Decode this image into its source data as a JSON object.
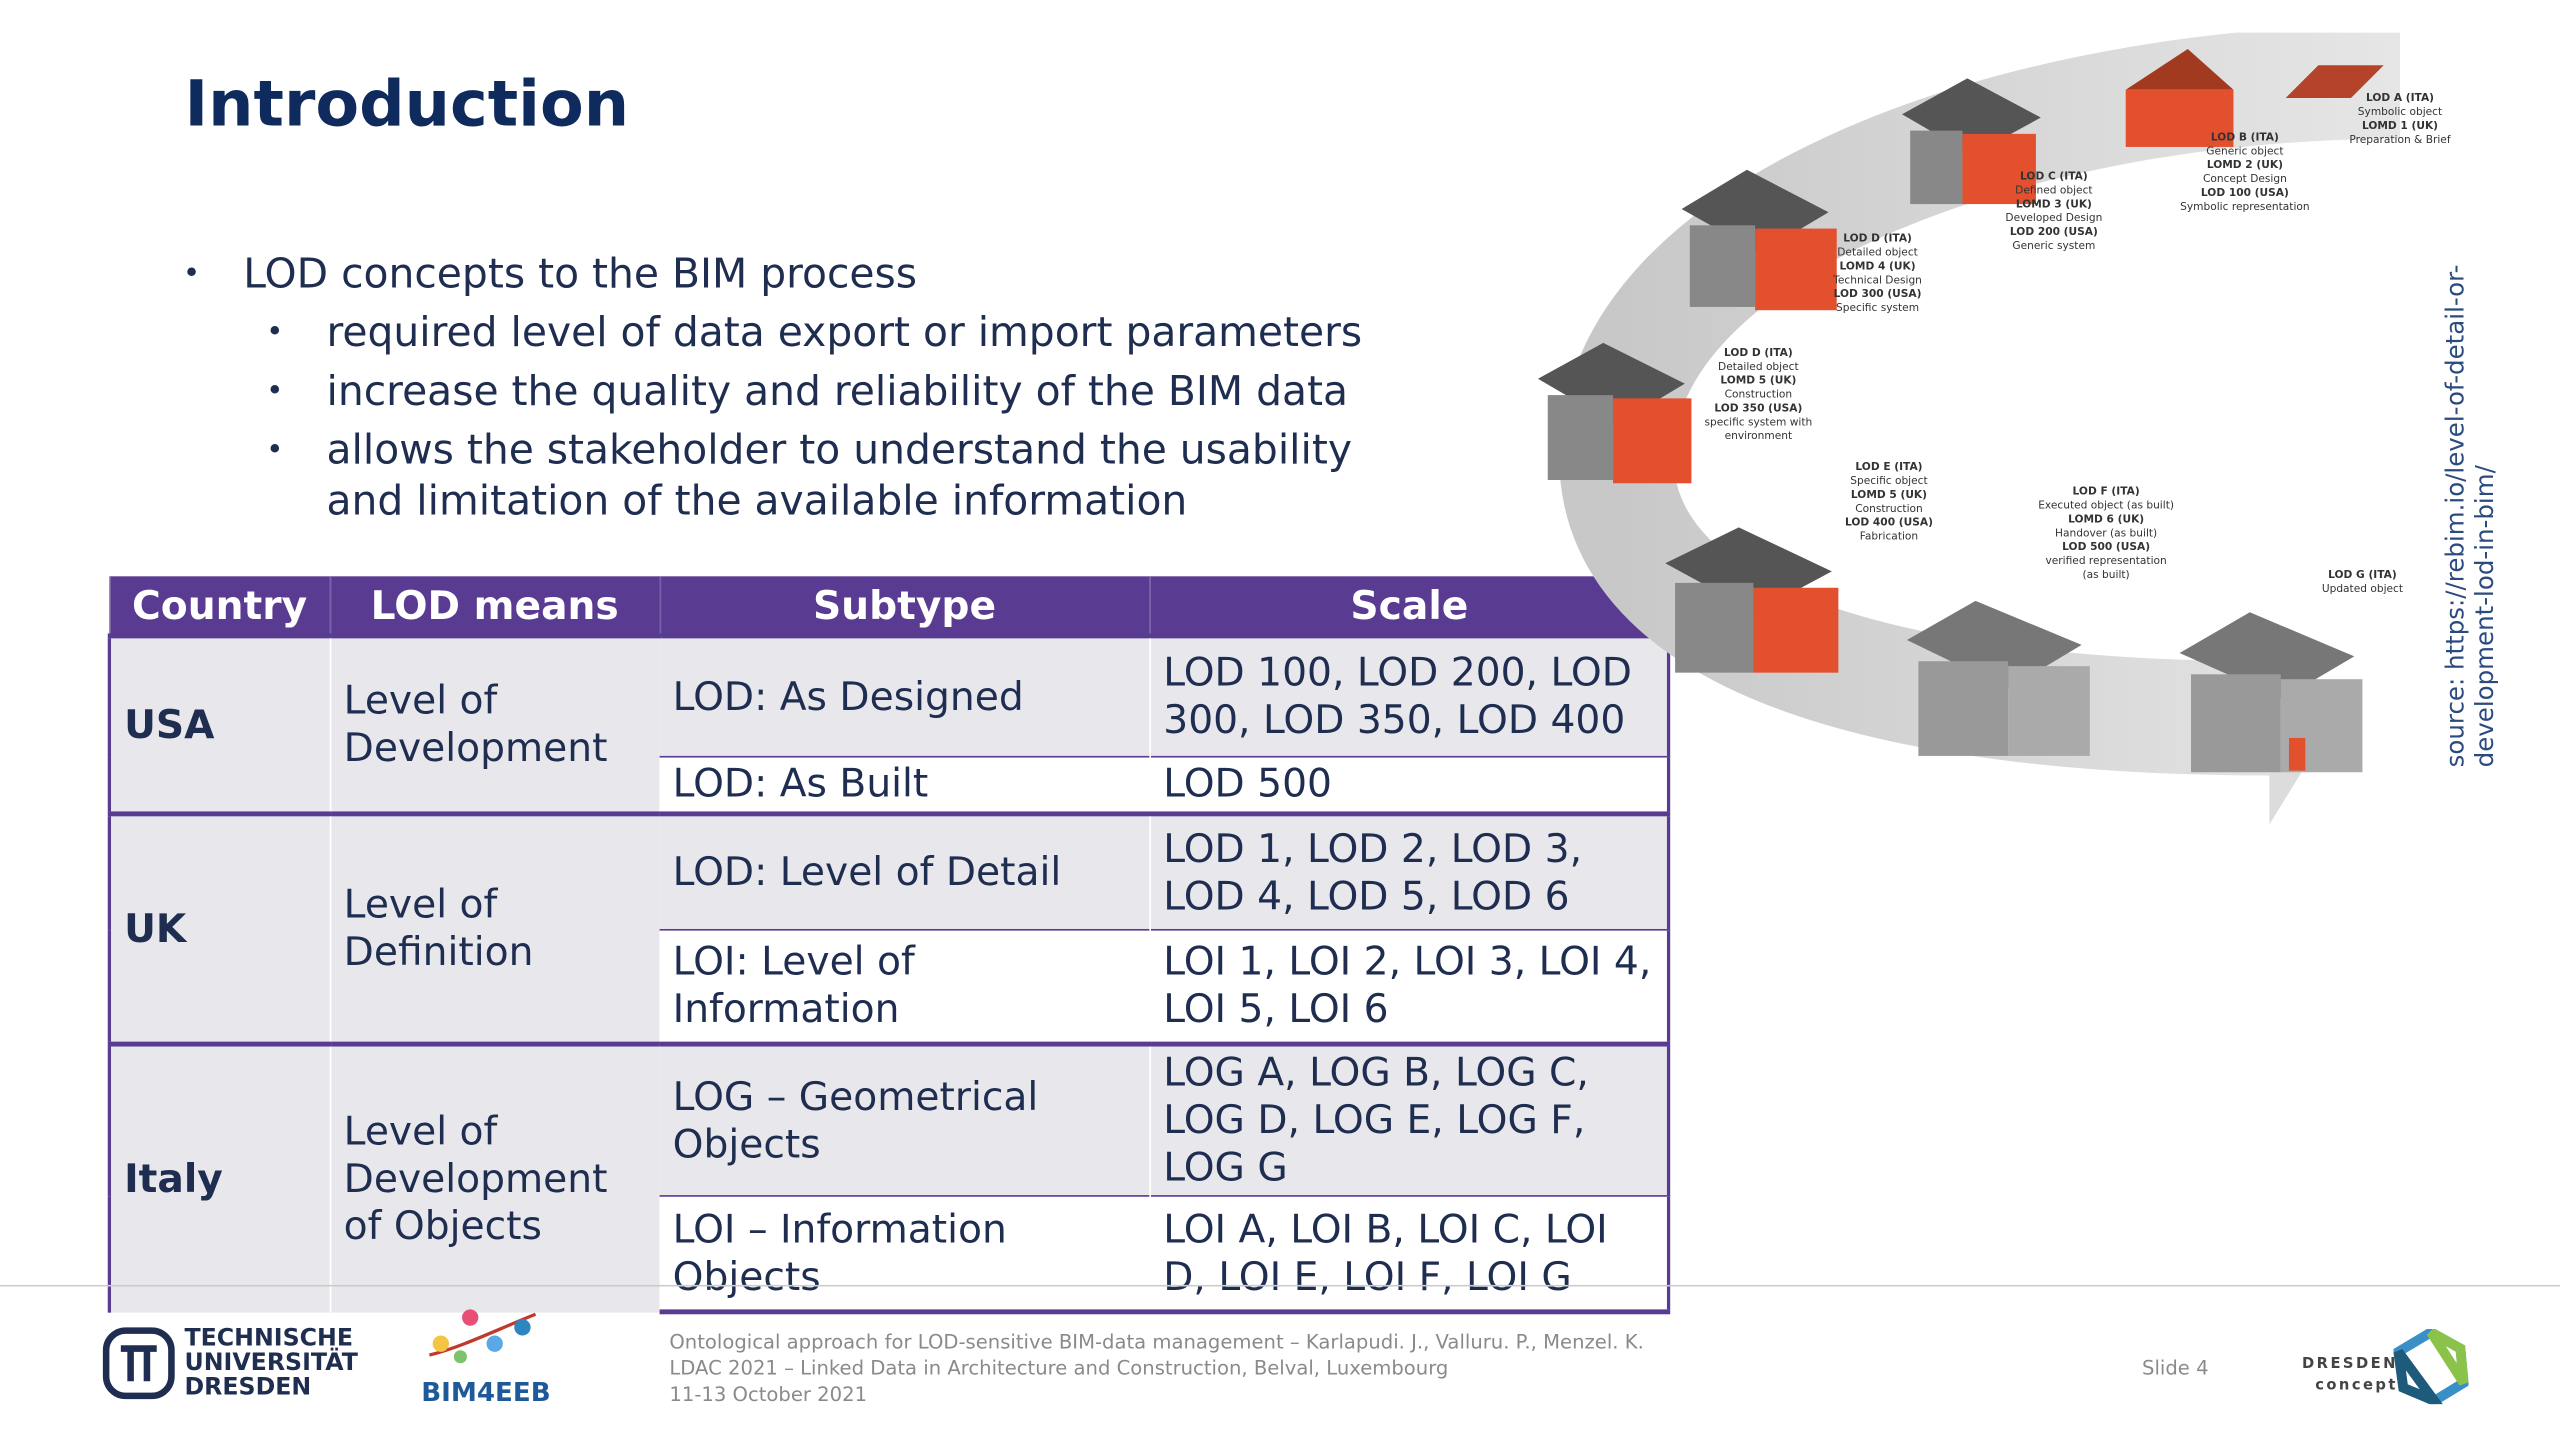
{
  "header": {
    "title": "Introduction"
  },
  "bullets": [
    {
      "text": "LOD concepts to the BIM process",
      "children": [
        "required level of data export or import parameters",
        "increase the quality and reliability of the BIM data",
        "allows the stakeholder to understand the usability and limitation of the available information"
      ]
    }
  ],
  "table": {
    "columns": [
      "Country",
      "LOD means",
      "Subtype",
      "Scale"
    ],
    "groups": [
      {
        "country": "USA",
        "means": "Level of Development",
        "rows": [
          [
            "LOD: As Designed",
            "LOD 100, LOD 200, LOD 300, LOD 350, LOD 400"
          ],
          [
            "LOD: As Built",
            "LOD 500"
          ]
        ]
      },
      {
        "country": "UK",
        "means": "Level of Definition",
        "rows": [
          [
            "LOD: Level of Detail",
            "LOD 1, LOD 2, LOD 3, LOD 4, LOD 5, LOD 6"
          ],
          [
            "LOI: Level of Information",
            "LOI 1, LOI 2, LOI 3, LOI 4, LOI 5, LOI 6"
          ]
        ]
      },
      {
        "country": "Italy",
        "means": "Level of Development of Objects",
        "rows": [
          [
            "LOG – Geometrical Objects",
            "LOG A, LOG B, LOG C, LOG D, LOG E, LOG F, LOG G"
          ],
          [
            "LOI – Information Objects",
            "LOI A, LOI B, LOI C, LOI D, LOI E, LOI F, LOI G"
          ]
        ]
      }
    ]
  },
  "diagram": {
    "labels": [
      [
        "LOD A (ITA)",
        "Symbolic object",
        "LOMD 1 (UK)",
        "Preparation & Brief"
      ],
      [
        "LOD B (ITA)",
        "Generic object",
        "LOMD 2 (UK)",
        "Concept Design",
        "LOD 100 (USA)",
        "Symbolic representation"
      ],
      [
        "LOD C (ITA)",
        "Defined object",
        "LOMD 3 (UK)",
        "Developed Design",
        "LOD 200 (USA)",
        "Generic system"
      ],
      [
        "LOD D (ITA)",
        "Detailed object",
        "LOMD 4 (UK)",
        "Technical Design",
        "LOD 300 (USA)",
        "Specific system"
      ],
      [
        "LOD D (ITA)",
        "Detailed object",
        "LOMD 5 (UK)",
        "Construction",
        "LOD 350 (USA)",
        "specific system with",
        "environment"
      ],
      [
        "LOD E (ITA)",
        "Specific object",
        "LOMD 5 (UK)",
        "Construction",
        "LOD 400 (USA)",
        "Fabrication"
      ],
      [
        "LOD F (ITA)",
        "Executed object (as built)",
        "LOMD 6 (UK)",
        "Handover (as built)",
        "LOD 500 (USA)",
        "verified representation",
        "(as built)"
      ],
      [
        "LOD G (ITA)",
        "Updated object"
      ]
    ]
  },
  "source": [
    "source: https://rebim.io/level-of-detail-or-",
    "development-lod-in-bim/"
  ],
  "footer": {
    "logo_tu": [
      "TECHNISCHE",
      "UNIVERSITÄT",
      "DRESDEN"
    ],
    "logo_bim": "BIM4EEB",
    "citation": [
      "Ontological approach for LOD-sensitive BIM-data management – Karlapudi. J., Valluru. P., Menzel. K.",
      "LDAC 2021 – Linked Data in Architecture and Construction, Belval, Luxembourg",
      "11-13 October 2021"
    ],
    "slide": "Slide 4",
    "logo_dresden": [
      "DRESDEN",
      "concept"
    ]
  }
}
